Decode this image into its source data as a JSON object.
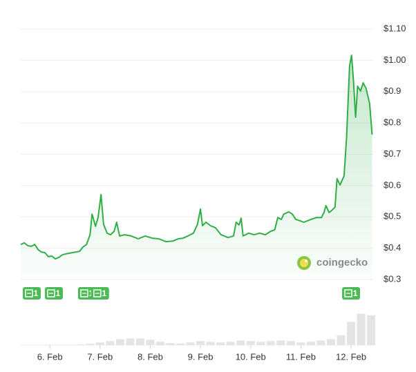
{
  "chart_data": {
    "type": "line",
    "color": "#2fae45",
    "xlim": [
      5.42,
      12.44
    ],
    "xticks": [
      {
        "value": 6,
        "label": "6. Feb"
      },
      {
        "value": 7,
        "label": "7. Feb"
      },
      {
        "value": 8,
        "label": "8. Feb"
      },
      {
        "value": 9,
        "label": "9. Feb"
      },
      {
        "value": 10,
        "label": "10. Feb"
      },
      {
        "value": 11,
        "label": "11. Feb"
      },
      {
        "value": 12,
        "label": "12. Feb"
      }
    ],
    "ylim": [
      0.3,
      1.1
    ],
    "yticks": [
      {
        "value": 1.1,
        "label": "$1.10"
      },
      {
        "value": 1.0,
        "label": "$1.00"
      },
      {
        "value": 0.9,
        "label": "$0.9"
      },
      {
        "value": 0.8,
        "label": "$0.8"
      },
      {
        "value": 0.7,
        "label": "$0.7"
      },
      {
        "value": 0.6,
        "label": "$0.6"
      },
      {
        "value": 0.5,
        "label": "$0.5"
      },
      {
        "value": 0.4,
        "label": "$0.4"
      },
      {
        "value": 0.3,
        "label": "$0.3"
      }
    ],
    "grid": true,
    "x": [
      5.42,
      5.49,
      5.56,
      5.63,
      5.7,
      5.77,
      5.83,
      5.9,
      5.97,
      6.04,
      6.11,
      6.18,
      6.25,
      6.32,
      6.39,
      6.45,
      6.52,
      6.59,
      6.66,
      6.73,
      6.8,
      6.84,
      6.91,
      6.96,
      7.02,
      7.07,
      7.14,
      7.21,
      7.28,
      7.33,
      7.39,
      7.49,
      7.62,
      7.76,
      7.9,
      8.04,
      8.17,
      8.31,
      8.45,
      8.56,
      8.65,
      8.75,
      8.86,
      8.94,
      9.0,
      9.04,
      9.11,
      9.2,
      9.3,
      9.41,
      9.55,
      9.66,
      9.71,
      9.77,
      9.81,
      9.85,
      9.96,
      10.07,
      10.18,
      10.29,
      10.4,
      10.48,
      10.54,
      10.61,
      10.66,
      10.76,
      10.83,
      10.9,
      10.99,
      11.06,
      11.2,
      11.31,
      11.41,
      11.46,
      11.5,
      11.56,
      11.61,
      11.68,
      11.72,
      11.78,
      11.86,
      11.91,
      11.97,
      12.01,
      12.05,
      12.09,
      12.13,
      12.19,
      12.24,
      12.3,
      12.37,
      12.42
    ],
    "values": [
      0.412,
      0.417,
      0.408,
      0.406,
      0.412,
      0.395,
      0.388,
      0.386,
      0.373,
      0.375,
      0.366,
      0.371,
      0.379,
      0.382,
      0.384,
      0.386,
      0.388,
      0.39,
      0.404,
      0.412,
      0.443,
      0.509,
      0.47,
      0.498,
      0.571,
      0.476,
      0.448,
      0.443,
      0.454,
      0.483,
      0.439,
      0.443,
      0.439,
      0.43,
      0.439,
      0.432,
      0.43,
      0.421,
      0.423,
      0.43,
      0.432,
      0.439,
      0.448,
      0.476,
      0.525,
      0.472,
      0.483,
      0.472,
      0.465,
      0.443,
      0.434,
      0.439,
      0.483,
      0.474,
      0.496,
      0.439,
      0.448,
      0.443,
      0.448,
      0.443,
      0.454,
      0.459,
      0.498,
      0.492,
      0.509,
      0.516,
      0.509,
      0.492,
      0.487,
      0.483,
      0.492,
      0.498,
      0.498,
      0.514,
      0.536,
      0.514,
      0.52,
      0.531,
      0.622,
      0.602,
      0.631,
      0.752,
      0.983,
      1.016,
      0.928,
      0.818,
      0.917,
      0.902,
      0.928,
      0.91,
      0.862,
      0.763
    ],
    "volume": {
      "x": [
        6.0,
        6.2,
        6.4,
        6.6,
        6.8,
        7.0,
        7.2,
        7.4,
        7.6,
        7.8,
        8.0,
        8.2,
        8.4,
        8.6,
        8.8,
        9.0,
        9.2,
        9.4,
        9.6,
        9.8,
        10.0,
        10.2,
        10.4,
        10.6,
        10.8,
        11.0,
        11.2,
        11.4,
        11.6,
        11.8,
        12.0,
        12.2,
        12.4
      ],
      "values": [
        1,
        1,
        1,
        2,
        4,
        8,
        12,
        18,
        20,
        20,
        16,
        10,
        6,
        5,
        8,
        12,
        10,
        8,
        10,
        14,
        12,
        10,
        12,
        14,
        12,
        8,
        10,
        14,
        18,
        30,
        70,
        95,
        90
      ],
      "ylim": [
        0,
        100
      ]
    },
    "news": [
      {
        "x": 5.64,
        "count": 1
      },
      {
        "x": 6.08,
        "count": 1
      },
      {
        "x": 6.74,
        "count": 1
      },
      {
        "x": 7.0,
        "count": 1
      },
      {
        "x": 12.0,
        "count": 1
      }
    ],
    "watermark": "coingecko"
  }
}
